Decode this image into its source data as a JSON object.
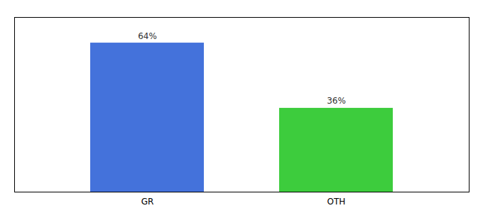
{
  "chart_data": {
    "type": "bar",
    "categories": [
      "GR",
      "OTH"
    ],
    "values": [
      64,
      36
    ],
    "value_labels": [
      "64%",
      "36%"
    ],
    "colors": [
      "#4472db",
      "#3dcc3d"
    ],
    "ylim": [
      0,
      75
    ],
    "data_labels": true,
    "tick_labels": "x"
  }
}
